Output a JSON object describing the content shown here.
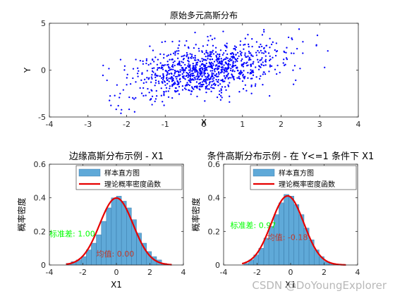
{
  "watermark": "CSDN @DoYoungExplorer",
  "colors": {
    "scatter": "#0000ff",
    "bars": "#5fa9d8",
    "bar_edge": "#2f6fa0",
    "pdf": "#e60000",
    "axis": "#262626",
    "sd_text": "#00ff00",
    "mean_text": "#c0392b"
  },
  "chart_data": [
    {
      "type": "scatter",
      "title": "原始多元高斯分布",
      "xlabel": "X",
      "ylabel": "Y",
      "xlim": [
        -4,
        4
      ],
      "ylim": [
        -5,
        5
      ],
      "xticks": [
        -4,
        -3,
        -2,
        -1,
        0,
        1,
        2,
        3,
        4
      ],
      "yticks": [
        -5,
        0,
        5
      ],
      "marker_color": "#0000ff",
      "point_count": 1000,
      "mean": [
        0,
        0
      ],
      "std": [
        1,
        1.5
      ],
      "correlation": 0.45,
      "x_range": [
        -3.2,
        3.3
      ],
      "y_range": [
        -4.8,
        4.7
      ],
      "grid": false
    },
    {
      "type": "bar",
      "title": "边缘高斯分布示例 - X1",
      "xlabel": "X1",
      "ylabel": "概率密度",
      "xlim": [
        -4,
        4
      ],
      "ylim": [
        0,
        0.6
      ],
      "xticks": [
        -4,
        -2,
        0,
        2,
        4
      ],
      "yticks": [
        0,
        0.2,
        0.4,
        0.6
      ],
      "bin_edges": [
        -3.0,
        -2.7,
        -2.4,
        -2.1,
        -1.8,
        -1.5,
        -1.2,
        -0.9,
        -0.6,
        -0.3,
        0.0,
        0.3,
        0.6,
        0.9,
        1.2,
        1.5,
        1.8,
        2.1,
        2.4,
        2.7,
        3.0,
        3.3
      ],
      "density": [
        0.01,
        0.02,
        0.03,
        0.05,
        0.09,
        0.13,
        0.18,
        0.26,
        0.34,
        0.4,
        0.41,
        0.38,
        0.34,
        0.27,
        0.19,
        0.13,
        0.08,
        0.05,
        0.03,
        0.01,
        0.005
      ],
      "series": [
        {
          "name": "样本直方图"
        },
        {
          "name": "理论概率密度函数",
          "mean": 0,
          "std": 1,
          "x_range": [
            -3,
            3.3
          ]
        }
      ],
      "legend": "top-right",
      "annotations": [
        {
          "text": "标准差: 1.00",
          "x": -4,
          "y": 0.17,
          "color": "#00ff00"
        },
        {
          "text": "均值: 0.00",
          "x": -1.2,
          "y": 0.05,
          "color": "#c0392b"
        }
      ],
      "grid": false
    },
    {
      "type": "bar",
      "title": "条件高斯分布示例 - 在 Y<=1 条件下 X1",
      "xlabel": "X1",
      "ylabel": "概率密度",
      "xlim": [
        -4,
        4
      ],
      "ylim": [
        0,
        0.6
      ],
      "xticks": [
        -4,
        -2,
        0,
        2,
        4
      ],
      "yticks": [
        0,
        0.2,
        0.4,
        0.6
      ],
      "bin_edges": [
        -2.8,
        -2.5,
        -2.2,
        -1.9,
        -1.6,
        -1.3,
        -1.0,
        -0.7,
        -0.4,
        -0.1,
        0.2,
        0.5,
        0.8,
        1.1,
        1.4,
        1.7,
        2.0,
        2.3,
        2.6
      ],
      "density": [
        0.01,
        0.03,
        0.06,
        0.1,
        0.16,
        0.23,
        0.3,
        0.37,
        0.42,
        0.41,
        0.36,
        0.3,
        0.22,
        0.15,
        0.09,
        0.05,
        0.02,
        0.01
      ],
      "series": [
        {
          "name": "样本直方图"
        },
        {
          "name": "理论概率密度函数",
          "mean": -0.18,
          "std": 0.97,
          "x_range": [
            -2.9,
            3.3
          ]
        }
      ],
      "legend": "top-right",
      "annotations": [
        {
          "text": "标准差: 0.97",
          "x": -3.6,
          "y": 0.22,
          "color": "#00ff00"
        },
        {
          "text": "均值: -0.18",
          "x": -1.4,
          "y": 0.15,
          "color": "#c0392b"
        }
      ],
      "grid": false
    }
  ]
}
